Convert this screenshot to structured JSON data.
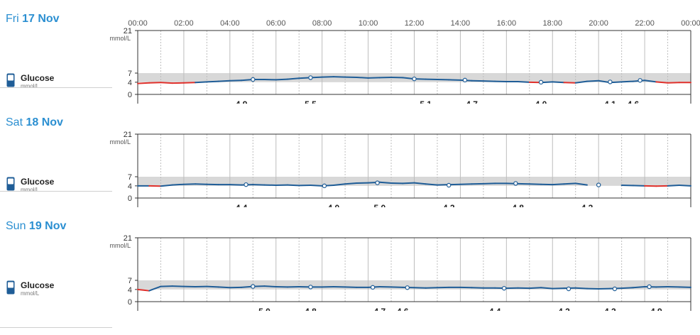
{
  "time_ticks": [
    "00:00",
    "02:00",
    "04:00",
    "06:00",
    "08:00",
    "10:00",
    "12:00",
    "14:00",
    "16:00",
    "18:00",
    "20:00",
    "22:00",
    "00:00"
  ],
  "legend": {
    "name": "Glucose",
    "unit": "mmol/L",
    "icon": "glucometer-icon"
  },
  "y_ticks": [
    "21",
    "7",
    "4",
    "0"
  ],
  "y_unit": "mmol/L",
  "colors": {
    "accent": "#2b8fd1",
    "line": "#1f5d97",
    "low": "#e0302b",
    "band": "#d8d8d8"
  },
  "chart_data": [
    {
      "type": "line",
      "day_name": "Fri",
      "day_date": "17 Nov",
      "ylim": [
        0,
        21
      ],
      "target_range": [
        4,
        7
      ],
      "series": [
        {
          "segments": [
            [
              [
                0,
                3.6
              ],
              [
                0.5,
                3.8
              ],
              [
                1,
                3.9
              ],
              [
                1.5,
                3.7
              ],
              [
                2,
                3.8
              ],
              [
                2.5,
                3.9
              ],
              [
                3,
                4.1
              ],
              [
                3.5,
                4.3
              ],
              [
                4,
                4.5
              ],
              [
                4.5,
                4.6
              ],
              [
                5,
                4.9
              ],
              [
                5.5,
                4.9
              ],
              [
                6,
                4.8
              ],
              [
                6.5,
                5.0
              ],
              [
                7,
                5.3
              ],
              [
                7.5,
                5.5
              ],
              [
                8,
                5.7
              ],
              [
                8.5,
                5.8
              ],
              [
                9,
                5.7
              ],
              [
                9.5,
                5.6
              ],
              [
                10,
                5.4
              ],
              [
                10.5,
                5.5
              ],
              [
                11,
                5.6
              ],
              [
                11.5,
                5.5
              ],
              [
                12,
                5.1
              ],
              [
                12.5,
                5.0
              ],
              [
                13,
                4.9
              ],
              [
                13.5,
                4.8
              ],
              [
                14,
                4.7
              ],
              [
                14.5,
                4.5
              ],
              [
                15,
                4.4
              ],
              [
                15.5,
                4.3
              ],
              [
                16,
                4.2
              ],
              [
                16.5,
                4.2
              ],
              [
                17,
                4.0
              ],
              [
                17.5,
                3.9
              ],
              [
                18,
                4.1
              ],
              [
                18.5,
                3.9
              ],
              [
                19,
                3.8
              ],
              [
                19.5,
                4.3
              ],
              [
                20,
                4.5
              ],
              [
                20.5,
                3.9
              ],
              [
                21,
                4.1
              ],
              [
                21.5,
                4.3
              ],
              [
                22,
                4.6
              ],
              [
                22.5,
                4.1
              ],
              [
                23,
                3.8
              ],
              [
                23.5,
                3.9
              ],
              [
                24,
                3.9
              ]
            ]
          ]
        }
      ],
      "points": [
        [
          5,
          4.9
        ],
        [
          7.5,
          5.5
        ],
        [
          12,
          5.1
        ],
        [
          14.2,
          4.7
        ],
        [
          17.5,
          4.0
        ],
        [
          20.5,
          4.1
        ],
        [
          21.8,
          4.6
        ]
      ],
      "values": [
        {
          "t": 4.5,
          "v": "4.9"
        },
        {
          "t": 7.5,
          "v": "5.5"
        },
        {
          "t": 12.5,
          "v": "5.1"
        },
        {
          "t": 14.5,
          "v": "4.7"
        },
        {
          "t": 17.5,
          "v": "4.0"
        },
        {
          "t": 20.5,
          "v": "4.1"
        },
        {
          "t": 21.5,
          "v": "4.6"
        }
      ]
    },
    {
      "type": "line",
      "day_name": "Sat",
      "day_date": "18 Nov",
      "ylim": [
        0,
        21
      ],
      "target_range": [
        4,
        7
      ],
      "series": [
        {
          "segments": [
            [
              [
                0,
                4.0
              ],
              [
                0.5,
                4.0
              ],
              [
                1,
                3.9
              ],
              [
                1.5,
                4.3
              ],
              [
                2,
                4.5
              ],
              [
                2.5,
                4.6
              ],
              [
                3,
                4.5
              ],
              [
                3.5,
                4.4
              ],
              [
                4,
                4.4
              ],
              [
                4.5,
                4.3
              ],
              [
                5,
                4.4
              ],
              [
                5.5,
                4.3
              ],
              [
                6,
                4.2
              ],
              [
                6.5,
                4.3
              ],
              [
                7,
                4.1
              ],
              [
                7.5,
                4.2
              ],
              [
                8,
                4.0
              ],
              [
                8.5,
                4.2
              ],
              [
                9,
                4.6
              ],
              [
                9.5,
                4.9
              ],
              [
                10,
                5.0
              ],
              [
                10.5,
                5.2
              ],
              [
                11,
                4.9
              ],
              [
                11.5,
                4.8
              ],
              [
                12,
                5.0
              ],
              [
                12.5,
                4.6
              ],
              [
                13,
                4.3
              ],
              [
                13.5,
                4.4
              ],
              [
                14,
                4.5
              ],
              [
                14.5,
                4.6
              ],
              [
                15,
                4.7
              ],
              [
                15.5,
                4.8
              ],
              [
                16,
                4.8
              ],
              [
                16.5,
                4.7
              ],
              [
                17,
                4.6
              ],
              [
                17.5,
                4.5
              ],
              [
                18,
                4.4
              ],
              [
                18.5,
                4.6
              ],
              [
                19,
                4.8
              ],
              [
                19.5,
                4.3
              ]
            ],
            [
              [
                21,
                4.2
              ],
              [
                21.5,
                4.1
              ],
              [
                22,
                4.0
              ],
              [
                22.5,
                3.9
              ],
              [
                23,
                4.0
              ],
              [
                23.5,
                4.2
              ],
              [
                24,
                4.0
              ]
            ]
          ]
        }
      ],
      "points": [
        [
          4.7,
          4.4
        ],
        [
          8.1,
          4.0
        ],
        [
          10.4,
          5.0
        ],
        [
          13.5,
          4.2
        ],
        [
          16.4,
          4.8
        ],
        [
          20.0,
          4.3
        ]
      ],
      "values": [
        {
          "t": 4.5,
          "v": "4.4"
        },
        {
          "t": 8.5,
          "v": "4.0"
        },
        {
          "t": 10.5,
          "v": "5.0"
        },
        {
          "t": 13.5,
          "v": "4.2"
        },
        {
          "t": 16.5,
          "v": "4.8"
        },
        {
          "t": 19.5,
          "v": "4.3"
        }
      ]
    },
    {
      "type": "line",
      "day_name": "Sun",
      "day_date": "19 Nov",
      "ylim": [
        0,
        21
      ],
      "target_range": [
        4,
        7
      ],
      "series": [
        {
          "segments": [
            [
              [
                0,
                4.0
              ],
              [
                0.5,
                3.6
              ],
              [
                1,
                5.0
              ],
              [
                1.5,
                5.1
              ],
              [
                2,
                5.0
              ],
              [
                2.5,
                4.9
              ],
              [
                3,
                5.0
              ],
              [
                3.5,
                4.8
              ],
              [
                4,
                4.6
              ],
              [
                4.5,
                4.7
              ],
              [
                5,
                5.0
              ],
              [
                5.5,
                5.1
              ],
              [
                6,
                4.9
              ],
              [
                6.5,
                4.8
              ],
              [
                7,
                4.9
              ],
              [
                7.5,
                4.8
              ],
              [
                8,
                4.8
              ],
              [
                8.5,
                4.9
              ],
              [
                9,
                4.8
              ],
              [
                9.5,
                4.7
              ],
              [
                10,
                4.7
              ],
              [
                10.5,
                4.9
              ],
              [
                11,
                4.8
              ],
              [
                11.5,
                4.7
              ],
              [
                12,
                4.6
              ],
              [
                12.5,
                4.5
              ],
              [
                13,
                4.6
              ],
              [
                13.5,
                4.7
              ],
              [
                14,
                4.7
              ],
              [
                14.5,
                4.6
              ],
              [
                15,
                4.5
              ],
              [
                15.5,
                4.5
              ],
              [
                16,
                4.4
              ],
              [
                16.5,
                4.5
              ],
              [
                17,
                4.4
              ],
              [
                17.5,
                4.6
              ],
              [
                18,
                4.3
              ],
              [
                18.5,
                4.4
              ],
              [
                19,
                4.5
              ],
              [
                19.5,
                4.3
              ],
              [
                20,
                4.2
              ],
              [
                20.5,
                4.3
              ],
              [
                21,
                4.4
              ],
              [
                21.5,
                4.6
              ],
              [
                22,
                4.9
              ],
              [
                22.5,
                4.8
              ],
              [
                23,
                4.9
              ],
              [
                23.5,
                4.8
              ],
              [
                24,
                4.7
              ]
            ]
          ]
        }
      ],
      "points": [
        [
          5,
          5.0
        ],
        [
          7.5,
          4.8
        ],
        [
          10.2,
          4.7
        ],
        [
          11.7,
          4.6
        ],
        [
          15.9,
          4.4
        ],
        [
          18.7,
          4.2
        ],
        [
          20.7,
          4.2
        ],
        [
          22.2,
          4.9
        ]
      ],
      "values": [
        {
          "t": 5.5,
          "v": "5.0"
        },
        {
          "t": 7.5,
          "v": "4.8"
        },
        {
          "t": 10.5,
          "v": "4.7"
        },
        {
          "t": 11.5,
          "v": "4.6"
        },
        {
          "t": 15.5,
          "v": "4.4"
        },
        {
          "t": 18.5,
          "v": "4.2"
        },
        {
          "t": 20.5,
          "v": "4.2"
        },
        {
          "t": 22.5,
          "v": "4.9"
        }
      ]
    }
  ]
}
